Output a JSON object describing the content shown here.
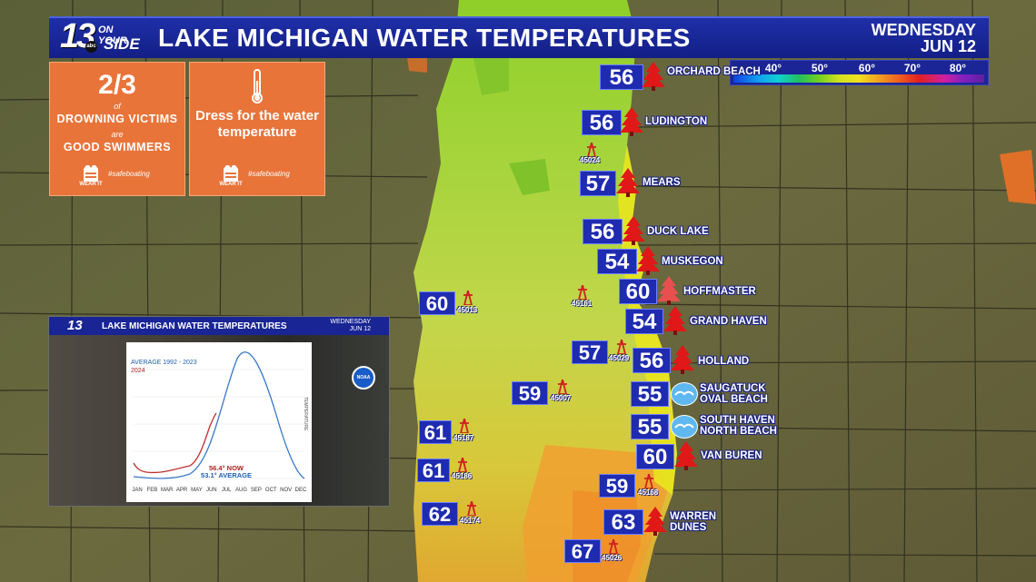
{
  "header": {
    "logo_number": "13",
    "logo_line1": "ON YOUR",
    "logo_line2": "SIDE",
    "logo_network": "abc",
    "title": "LAKE MICHIGAN WATER TEMPERATURES",
    "day": "WEDNESDAY",
    "date": "JUN 12"
  },
  "legend": {
    "ticks": [
      "40°",
      "50°",
      "60°",
      "70°",
      "80°"
    ]
  },
  "card_drowning": {
    "stat": "2/3",
    "of": "of",
    "line1": "DROWNING VICTIMS",
    "are": "are",
    "line2": "GOOD SWIMMERS",
    "badge": "WEAR IT",
    "hashtag": "#safeboating"
  },
  "card_dress": {
    "text": "Dress for the water temperature",
    "badge": "WEAR IT",
    "hashtag": "#safeboating"
  },
  "inset": {
    "logo": "13",
    "title": "LAKE MICHIGAN WATER TEMPERATURES",
    "day": "WEDNESDAY",
    "date": "JUN 12",
    "legend_avg": "AVERAGE 1992 - 2023",
    "legend_cur": "2024",
    "now_text": "56.4° NOW",
    "avg_text": "53.1° AVERAGE",
    "agency": "NOAA",
    "y_title": "TEMPERATURE",
    "months": [
      "JAN",
      "FEB",
      "MAR",
      "APR",
      "MAY",
      "JUN",
      "JUL",
      "AUG",
      "SEP",
      "OCT",
      "NOV",
      "DEC"
    ]
  },
  "beaches": [
    {
      "name": "ORCHARD BEACH",
      "temp": "56",
      "icon": "tree-icon"
    },
    {
      "name": "LUDINGTON",
      "temp": "56",
      "icon": "tree-icon"
    },
    {
      "name": "MEARS",
      "temp": "57",
      "icon": "tree-icon"
    },
    {
      "name": "DUCK LAKE",
      "temp": "56",
      "icon": "tree-icon"
    },
    {
      "name": "MUSKEGON",
      "temp": "54",
      "icon": "tree-icon"
    },
    {
      "name": "HOFFMASTER",
      "temp": "60",
      "icon": "tree-icon"
    },
    {
      "name": "GRAND HAVEN",
      "temp": "54",
      "icon": "tree-icon"
    },
    {
      "name": "HOLLAND",
      "temp": "56",
      "icon": "tree-icon"
    },
    {
      "name": "SAUGATUCK OVAL BEACH",
      "temp": "55",
      "icon": "gull-icon"
    },
    {
      "name": "SOUTH HAVEN NORTH BEACH",
      "temp": "55",
      "icon": "gull-icon"
    },
    {
      "name": "VAN BUREN",
      "temp": "60",
      "icon": "tree-icon"
    },
    {
      "name": "WARREN DUNES",
      "temp": "63",
      "icon": "tree-icon"
    }
  ],
  "buoys": [
    {
      "id": "45024",
      "temp": ""
    },
    {
      "id": "45013",
      "temp": "60"
    },
    {
      "id": "45161",
      "temp": ""
    },
    {
      "id": "45029",
      "temp": "57"
    },
    {
      "id": "45007",
      "temp": "59"
    },
    {
      "id": "45187",
      "temp": "61"
    },
    {
      "id": "45186",
      "temp": "61"
    },
    {
      "id": "45174",
      "temp": "62"
    },
    {
      "id": "45168",
      "temp": "59"
    },
    {
      "id": "45026",
      "temp": "67"
    }
  ],
  "colors": {
    "title_bar": "#1a2595",
    "card_orange": "#e8743a",
    "label_box": "#1f2bb0",
    "tree_red": "#e01818",
    "lake_green": "#9acd32",
    "lake_yellow": "#e6e61e",
    "lake_orange": "#f0a030"
  }
}
